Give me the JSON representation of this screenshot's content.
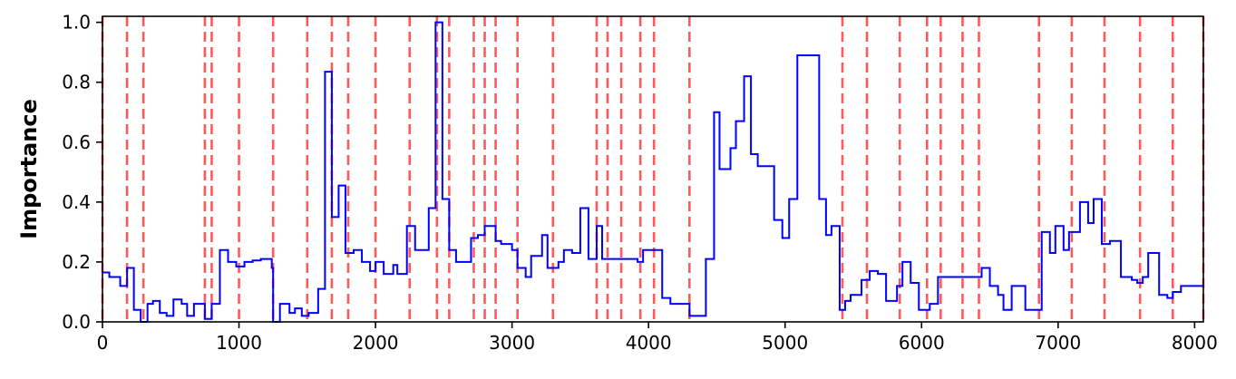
{
  "chart_data": {
    "type": "line",
    "step": true,
    "title": "",
    "xlabel": "",
    "ylabel": "Importance",
    "xlim": [
      0,
      8064
    ],
    "ylim": [
      0,
      1.02
    ],
    "grid": false,
    "xticks": [
      0,
      1000,
      2000,
      3000,
      4000,
      5000,
      6000,
      7000,
      8000
    ],
    "xtick_labels": [
      "0",
      "1000",
      "2000",
      "3000",
      "4000",
      "5000",
      "6000",
      "7000",
      "8000"
    ],
    "yticks": [
      0.0,
      0.2,
      0.4,
      0.6,
      0.8,
      1.0
    ],
    "ytick_labels": [
      "0.0",
      "0.2",
      "0.4",
      "0.6",
      "0.8",
      "1.0"
    ],
    "series_color": "#0000ff",
    "vline_color": "#ff5a5a",
    "vertical_lines_x": [
      0,
      180,
      300,
      750,
      800,
      1000,
      1250,
      1500,
      1680,
      1800,
      2000,
      2250,
      2450,
      2540,
      2720,
      2800,
      2880,
      3040,
      3300,
      3620,
      3700,
      3800,
      3940,
      4040,
      4300,
      5420,
      5600,
      5840,
      6040,
      6140,
      6300,
      6420,
      6860,
      7100,
      7340,
      7600,
      7840,
      8064
    ],
    "series": [
      {
        "x": [
          0,
          50,
          130,
          180,
          230,
          280,
          330,
          370,
          420,
          470,
          520,
          580,
          620,
          670,
          750,
          800,
          860,
          920,
          980,
          1040,
          1100,
          1160,
          1240,
          1250,
          1300,
          1370,
          1410,
          1460,
          1510,
          1580,
          1630,
          1680,
          1730,
          1780,
          1840,
          1900,
          1960,
          2000,
          2060,
          2130,
          2160,
          2230,
          2290,
          2390,
          2440,
          2490,
          2540,
          2590,
          2620,
          2700,
          2750,
          2800,
          2880,
          2920,
          3000,
          3040,
          3100,
          3140,
          3220,
          3260,
          3340,
          3380,
          3440,
          3500,
          3560,
          3620,
          3660,
          3720,
          3800,
          3920,
          3960,
          4060,
          4100,
          4160,
          4260,
          4300,
          4370,
          4420,
          4480,
          4520,
          4600,
          4640,
          4700,
          4750,
          4800,
          4860,
          4920,
          4980,
          5030,
          5090,
          5250,
          5300,
          5340,
          5400,
          5440,
          5480,
          5560,
          5620,
          5680,
          5740,
          5820,
          5860,
          5920,
          5980,
          6060,
          6120,
          6160,
          6240,
          6300,
          6440,
          6500,
          6560,
          6600,
          6660,
          6760,
          6820,
          6880,
          6940,
          6980,
          7040,
          7080,
          7160,
          7220,
          7260,
          7320,
          7380,
          7460,
          7540,
          7580,
          7620,
          7660,
          7740,
          7800,
          7840,
          7900,
          7980,
          8060
        ]
      },
      {
        "y": [
          0.165,
          0.15,
          0.12,
          0.18,
          0.04,
          0.0,
          0.06,
          0.07,
          0.03,
          0.02,
          0.075,
          0.06,
          0.02,
          0.06,
          0.01,
          0.06,
          0.24,
          0.2,
          0.185,
          0.2,
          0.205,
          0.21,
          0.18,
          0.0,
          0.06,
          0.03,
          0.045,
          0.02,
          0.03,
          0.11,
          0.835,
          0.35,
          0.455,
          0.23,
          0.24,
          0.2,
          0.17,
          0.2,
          0.16,
          0.19,
          0.16,
          0.32,
          0.24,
          0.38,
          1.0,
          0.41,
          0.24,
          0.2,
          0.2,
          0.28,
          0.29,
          0.32,
          0.27,
          0.26,
          0.24,
          0.18,
          0.15,
          0.22,
          0.29,
          0.18,
          0.2,
          0.24,
          0.23,
          0.38,
          0.21,
          0.32,
          0.21,
          0.21,
          0.21,
          0.2,
          0.24,
          0.24,
          0.08,
          0.06,
          0.06,
          0.02,
          0.02,
          0.21,
          0.7,
          0.51,
          0.58,
          0.67,
          0.82,
          0.56,
          0.52,
          0.52,
          0.34,
          0.28,
          0.41,
          0.89,
          0.41,
          0.29,
          0.32,
          0.04,
          0.07,
          0.09,
          0.14,
          0.17,
          0.16,
          0.07,
          0.12,
          0.2,
          0.13,
          0.04,
          0.06,
          0.15,
          0.15,
          0.15,
          0.15,
          0.18,
          0.12,
          0.09,
          0.04,
          0.12,
          0.04,
          0.04,
          0.3,
          0.23,
          0.32,
          0.24,
          0.3,
          0.4,
          0.33,
          0.41,
          0.26,
          0.27,
          0.15,
          0.14,
          0.13,
          0.15,
          0.23,
          0.09,
          0.08,
          0.1,
          0.12,
          0.12
        ]
      }
    ]
  }
}
